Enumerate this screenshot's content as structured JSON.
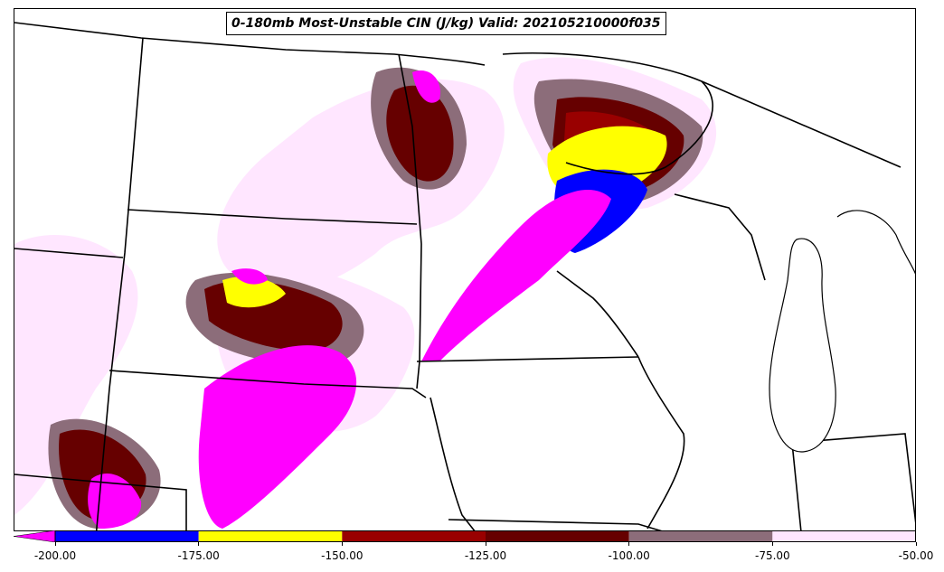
{
  "title": "0-180mb Most-Unstable CIN (J/kg) Valid: 202105210000f035",
  "colorbar": {
    "ticks": [
      "-200.00",
      "-175.00",
      "-150.00",
      "-125.00",
      "-100.00",
      "-75.00",
      "-50.00"
    ],
    "levels": [
      -200,
      -175,
      -150,
      -125,
      -100,
      -75,
      -50
    ],
    "extend": "min",
    "colors": [
      "#ff00ff",
      "#0000ff",
      "#ffff00",
      "#990000",
      "#660000",
      "#8c6d7a",
      "#ffe6ff"
    ],
    "band_colors": [
      "#0000ff",
      "#ffff00",
      "#990000",
      "#660000",
      "#8c6d7a",
      "#ffe6ff"
    ],
    "extend_color": "#ff00ff"
  },
  "map": {
    "region": "Upper Midwest / Northern Plains / Great Lakes",
    "lake_michigan": "white"
  }
}
